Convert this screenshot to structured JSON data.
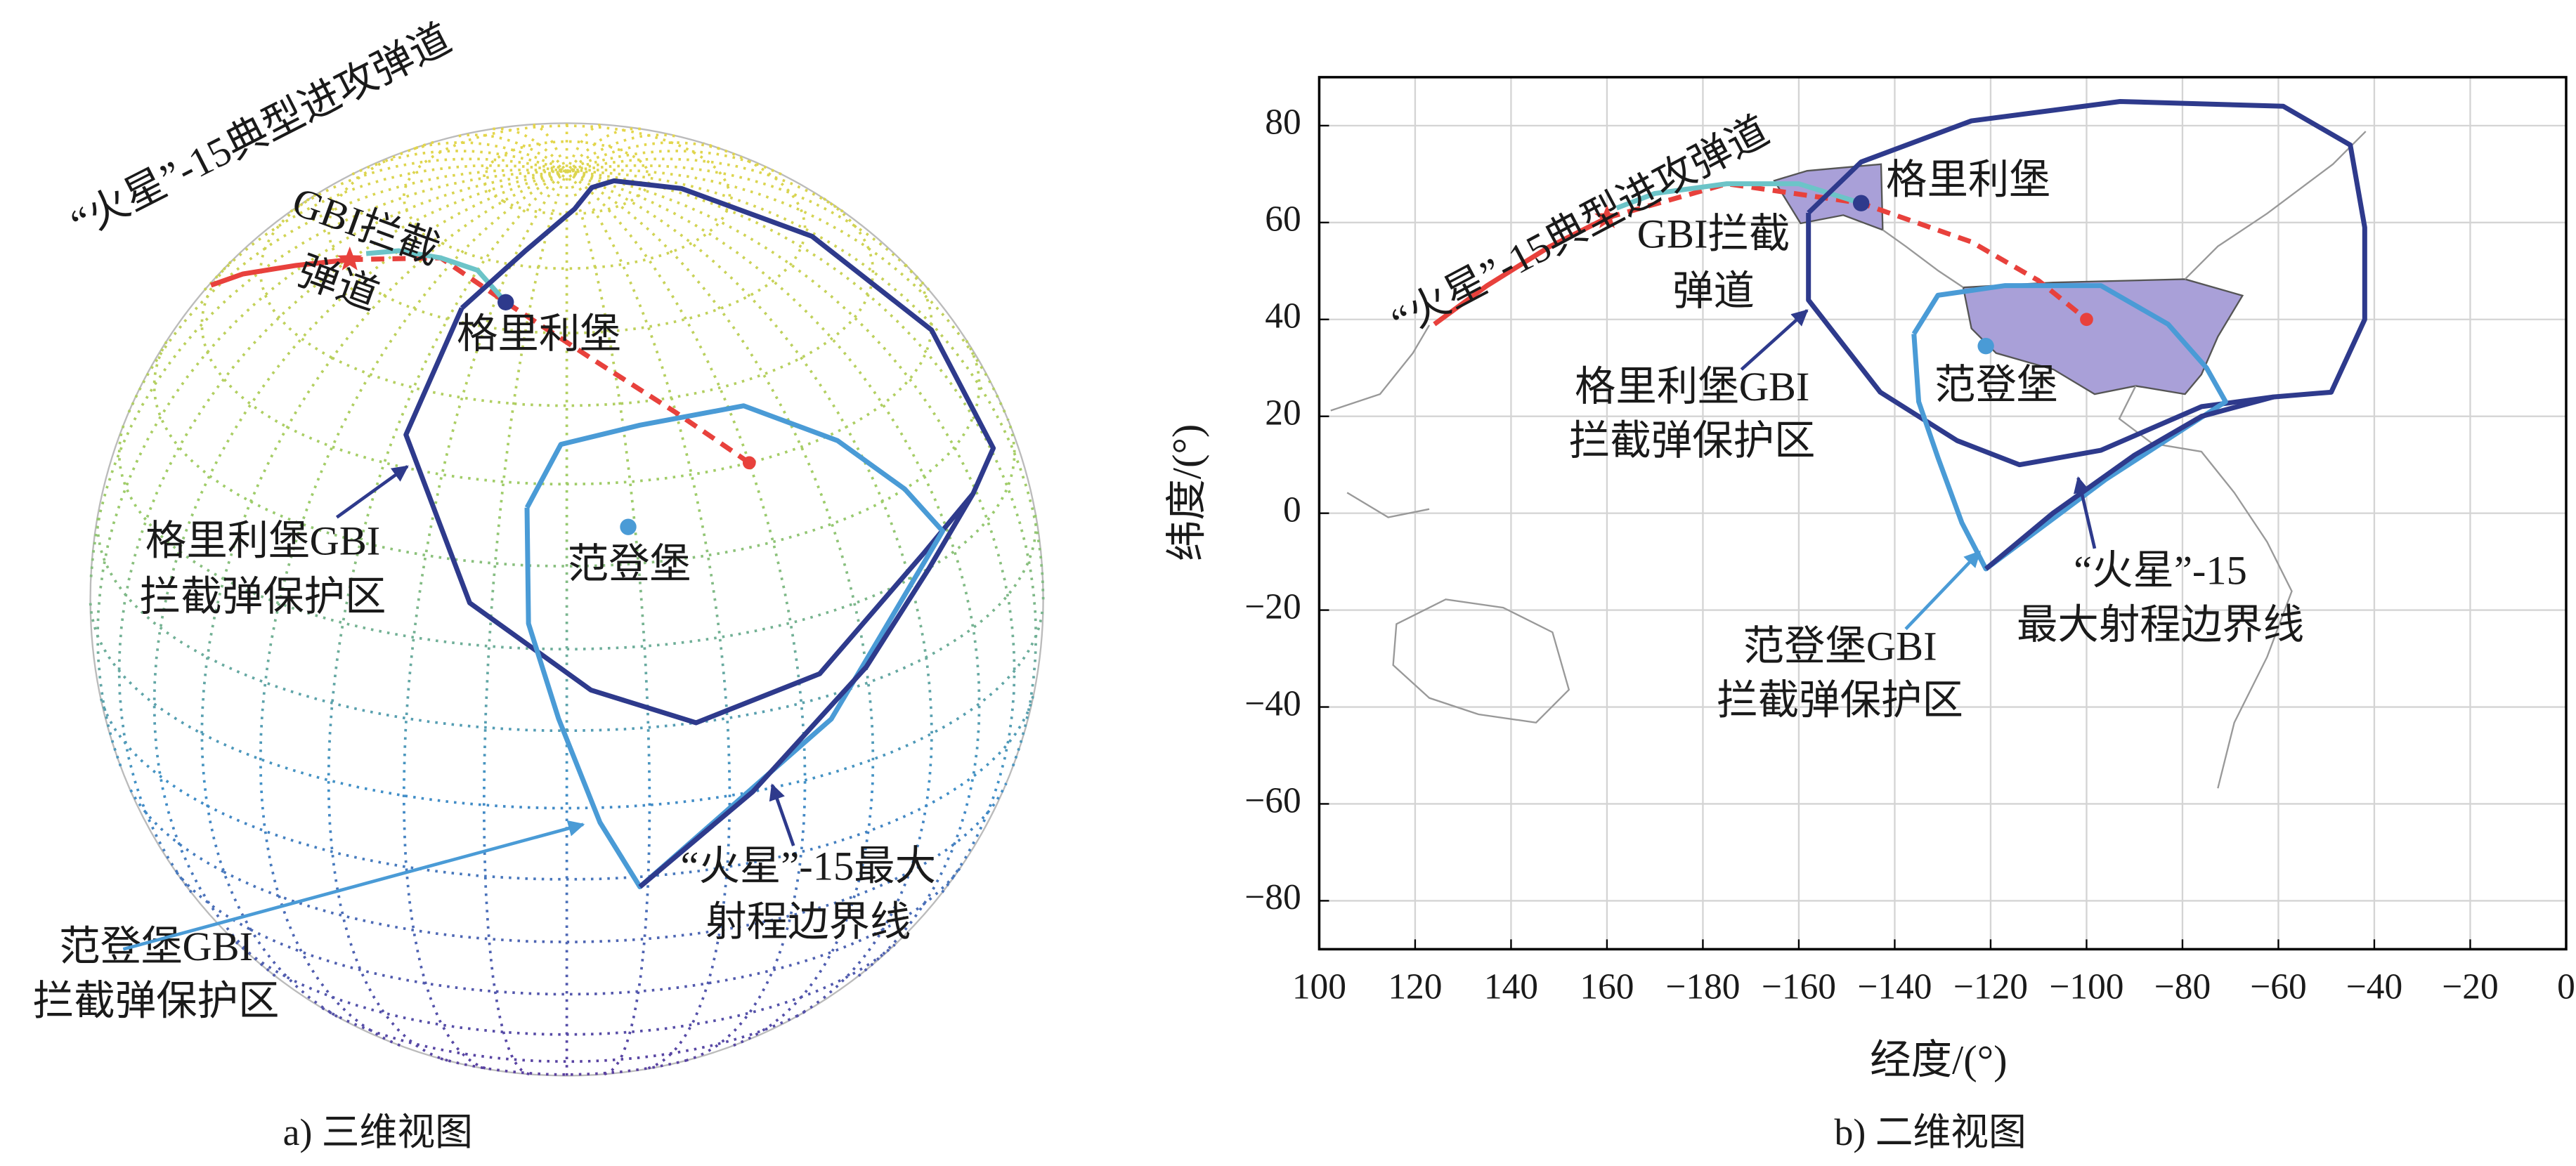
{
  "chart_data": [
    {
      "type": "globe",
      "caption": "a) 三维视图",
      "annotations": [
        [
          "“火星”-15典型进攻弹道"
        ],
        [
          "GBI拦截",
          "弹道"
        ],
        [
          "格里利堡"
        ],
        [
          "格里利堡GBI",
          "拦截弹保护区"
        ],
        [
          "范登堡"
        ],
        [
          "“火星”-15最大",
          "射程边界线"
        ],
        [
          "范登堡GBI",
          "拦截弹保护区"
        ]
      ]
    },
    {
      "type": "map",
      "caption": "b) 二维视图",
      "xlabel": "经度/(°)",
      "ylabel": "纬度/(°)",
      "xlim": [
        100,
        360
      ],
      "ylim": [
        -90,
        90
      ],
      "xticks": [
        100,
        120,
        140,
        160,
        {
          "value": 180,
          "label": "−180"
        },
        {
          "value": 200,
          "label": "−160"
        },
        {
          "value": 220,
          "label": "−140"
        },
        {
          "value": 240,
          "label": "−120"
        },
        {
          "value": 260,
          "label": "−100"
        },
        {
          "value": 280,
          "label": "−80"
        },
        {
          "value": 300,
          "label": "−60"
        },
        {
          "value": 320,
          "label": "−40"
        },
        {
          "value": 340,
          "label": "−20"
        },
        {
          "value": 360,
          "label": "0"
        }
      ],
      "yticks": [
        {
          "value": -80,
          "label": "−80"
        },
        {
          "value": -60,
          "label": "−60"
        },
        {
          "value": -40,
          "label": "−40"
        },
        {
          "value": -20,
          "label": "−20"
        },
        0,
        20,
        40,
        60,
        80
      ],
      "grid": true,
      "series": [
        {
          "color": "#e8413c",
          "dashed": false,
          "end_marker": "star",
          "x": [
            124,
            135,
            148,
            160
          ],
          "values": [
            39,
            47,
            55,
            61
          ]
        },
        {
          "color": "#e8413c",
          "dashed": true,
          "end_marker": "dot",
          "x": [
            160,
            185,
            213,
            236,
            250,
            260
          ],
          "values": [
            61,
            68,
            64,
            56,
            48,
            40
          ]
        },
        {
          "color": "#6cc4c8",
          "dashed": false,
          "x": [
            213,
            200,
            185,
            170,
            162
          ],
          "values": [
            64,
            68,
            68,
            66,
            63
          ]
        },
        {
          "color": "#2e3a8c",
          "dashed": false,
          "x": [
            202,
            213,
            236,
            267,
            301,
            315,
            318,
            318,
            311,
            299,
            284,
            263,
            246,
            233,
            217,
            202,
            202
          ],
          "values": [
            62,
            72.5,
            81,
            85,
            84,
            76,
            59,
            40,
            25,
            24,
            22,
            13,
            10,
            15,
            25,
            44,
            62
          ]
        },
        {
          "color": "#4a9bd6",
          "dashed": false,
          "x": [
            224,
            229,
            243,
            263,
            277,
            285,
            289,
            264,
            239,
            234,
            229,
            225,
            224
          ],
          "values": [
            37,
            45,
            47,
            47,
            39,
            30,
            23,
            7,
            -11.5,
            -2,
            11.5,
            23,
            37
          ]
        },
        {
          "color": "#2e3a8c",
          "dashed": false,
          "x": [
            239,
            253,
            270,
            284,
            299
          ],
          "values": [
            -11.5,
            0,
            12,
            20,
            24
          ]
        }
      ],
      "points": [
        {
          "x": 213,
          "y": 64,
          "color": "#2e3a8c"
        },
        {
          "x": 239,
          "y": 34.5,
          "color": "#4a9bd6"
        }
      ],
      "annotations": [
        [
          "“火星”-15典型进攻弹道"
        ],
        [
          "GBI拦截",
          "弹道"
        ],
        [
          "格里利堡"
        ],
        [
          "格里利堡GBI",
          "拦截弹保护区"
        ],
        [
          "范登堡"
        ],
        [
          "“火星”-15",
          "最大射程边界线"
        ],
        [
          "范登堡GBI",
          "拦截弹保护区"
        ]
      ]
    }
  ]
}
